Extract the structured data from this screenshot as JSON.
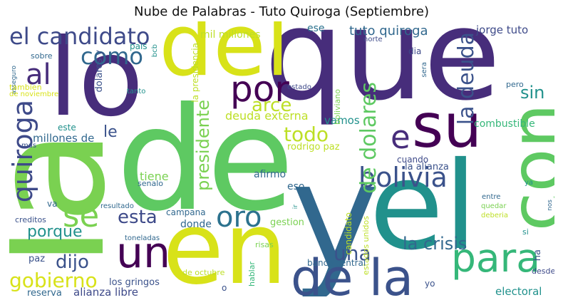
{
  "title": "Nube de Palabras - Tuto Quiroga (Septiembre)",
  "palette": {
    "dark_purple": "#472d7b",
    "deep_purple": "#440154",
    "blue": "#3b528b",
    "teal": "#21918c",
    "cyan": "#2c728e",
    "green": "#5ec962",
    "light_green": "#7ad151",
    "yellow": "#d8e219",
    "lime": "#bddf26",
    "mint": "#35b779"
  },
  "words": [
    {
      "text": "que",
      "color": "#472d7b"
    },
    {
      "text": "de",
      "color": "#5ec962"
    },
    {
      "text": "y",
      "color": "#31688e"
    },
    {
      "text": "el",
      "color": "#21918c"
    },
    {
      "text": "la",
      "color": "#7ad151"
    },
    {
      "text": "en",
      "color": "#d8e219"
    },
    {
      "text": "lo",
      "color": "#472d7b"
    },
    {
      "text": "del",
      "color": "#d8e219"
    },
    {
      "text": "su",
      "color": "#440154"
    },
    {
      "text": "con",
      "color": "#5ec962"
    },
    {
      "text": "de la",
      "color": "#3b528b"
    },
    {
      "text": "el candidato",
      "color": "#3e4a89"
    },
    {
      "text": "al",
      "color": "#472d7b"
    },
    {
      "text": "como",
      "color": "#31688e"
    },
    {
      "text": "por",
      "color": "#440154"
    },
    {
      "text": "un",
      "color": "#440154"
    },
    {
      "text": "para",
      "color": "#35b779"
    },
    {
      "text": "bolivia",
      "color": "#3b528b"
    },
    {
      "text": "se",
      "color": "#7ad151"
    },
    {
      "text": "oro",
      "color": "#2c728e"
    },
    {
      "text": "e",
      "color": "#472d7b"
    },
    {
      "text": "quiroga",
      "color": "#3e4a89"
    },
    {
      "text": "la deuda",
      "color": "#3b528b"
    },
    {
      "text": "de dolares",
      "color": "#5ec962"
    },
    {
      "text": "arce",
      "color": "#bddf26"
    },
    {
      "text": "todo",
      "color": "#bddf26"
    },
    {
      "text": "esta",
      "color": "#3e4a89"
    },
    {
      "text": "le",
      "color": "#3b528b"
    },
    {
      "text": "sin",
      "color": "#21918c"
    },
    {
      "text": "una",
      "color": "#3b528b"
    },
    {
      "text": "la crisis",
      "color": "#31688e"
    },
    {
      "text": "gobierno",
      "color": "#d8e219"
    },
    {
      "text": "dijo",
      "color": "#3b528b"
    },
    {
      "text": "porque",
      "color": "#21918c"
    },
    {
      "text": "presidente",
      "color": "#7ad151"
    },
    {
      "text": "tuto quiroga",
      "color": "#31688e"
    },
    {
      "text": "jorge tuto",
      "color": "#3e4a89"
    },
    {
      "text": "ese",
      "color": "#2c728e"
    },
    {
      "text": "mil millones",
      "color": "#bddf26"
    },
    {
      "text": "la presidencia",
      "color": "#bddf26"
    },
    {
      "text": "deuda externa",
      "color": "#bddf26"
    },
    {
      "text": "millones de",
      "color": "#31688e"
    },
    {
      "text": "vamos",
      "color": "#21918c"
    },
    {
      "text": "rodrigo paz",
      "color": "#bddf26"
    },
    {
      "text": "combustible",
      "color": "#35b779"
    },
    {
      "text": "la alianza",
      "color": "#3b528b"
    },
    {
      "text": "afirmo",
      "color": "#31688e"
    },
    {
      "text": "tiene",
      "color": "#7ad151"
    },
    {
      "text": "eso",
      "color": "#31688e"
    },
    {
      "text": "campana",
      "color": "#31688e"
    },
    {
      "text": "donde",
      "color": "#31688e"
    },
    {
      "text": "gestion",
      "color": "#7ad151"
    },
    {
      "text": "candidato",
      "color": "#bddf26"
    },
    {
      "text": "estados unidos",
      "color": "#bddf26"
    },
    {
      "text": "banco central",
      "color": "#31688e"
    },
    {
      "text": "los gringos",
      "color": "#3b528b"
    },
    {
      "text": "alianza libre",
      "color": "#3e4a89"
    },
    {
      "text": "electoral",
      "color": "#21918c"
    },
    {
      "text": "reserva",
      "color": "#31688e"
    },
    {
      "text": "de octubre",
      "color": "#bddf26"
    },
    {
      "text": "hablar",
      "color": "#35b779"
    },
    {
      "text": "risas",
      "color": "#7ad151"
    },
    {
      "text": "toneladas",
      "color": "#31688e"
    },
    {
      "text": "resultado",
      "color": "#31688e"
    },
    {
      "text": "paz",
      "color": "#3b528b"
    },
    {
      "text": "va",
      "color": "#31688e"
    },
    {
      "text": "creditos",
      "color": "#3b528b"
    },
    {
      "text": "mas",
      "color": "#3b528b"
    },
    {
      "text": "este",
      "color": "#21918c"
    },
    {
      "text": "dolares y",
      "color": "#3b528b"
    },
    {
      "text": "tanto",
      "color": "#21918c"
    },
    {
      "text": "senalo",
      "color": "#31688e"
    },
    {
      "text": "pais",
      "color": "#21918c"
    },
    {
      "text": "bcb",
      "color": "#21918c"
    },
    {
      "text": "sobre",
      "color": "#31688e"
    },
    {
      "text": "asseguro",
      "color": "#31688e"
    },
    {
      "text": "tambien",
      "color": "#d8e219"
    },
    {
      "text": "de noviembre",
      "color": "#d8e219"
    },
    {
      "text": "estado",
      "color": "#3e4a89"
    },
    {
      "text": "boliviano",
      "color": "#7ad151"
    },
    {
      "text": "norte",
      "color": "#3e4a89"
    },
    {
      "text": "dia",
      "color": "#3e4a89"
    },
    {
      "text": "sera",
      "color": "#31688e"
    },
    {
      "text": "pero",
      "color": "#31688e"
    },
    {
      "text": "cuando",
      "color": "#3e4a89"
    },
    {
      "text": "entre",
      "color": "#31688e"
    },
    {
      "text": "quedar",
      "color": "#7ad151"
    },
    {
      "text": "deberia",
      "color": "#bddf26"
    },
    {
      "text": "ya",
      "color": "#21918c"
    },
    {
      "text": "nos",
      "color": "#31688e"
    },
    {
      "text": "si",
      "color": "#21918c"
    },
    {
      "text": "ha",
      "color": "#3b528b"
    },
    {
      "text": "desde",
      "color": "#3e4a89"
    },
    {
      "text": "yo",
      "color": "#3b528b"
    },
    {
      "text": "o",
      "color": "#3b528b"
    },
    {
      "text": "ir",
      "color": "#21918c"
    }
  ]
}
